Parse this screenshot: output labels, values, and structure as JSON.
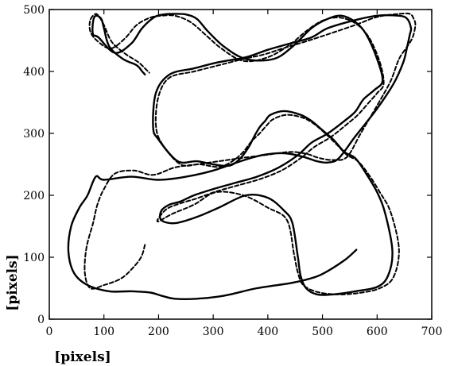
{
  "chart_data": {
    "type": "line",
    "title": "",
    "xlabel": "[pixels]",
    "ylabel": "[pixels]",
    "xlim": [
      0,
      700
    ],
    "ylim": [
      0,
      500
    ],
    "x_ticks": [
      0,
      100,
      200,
      300,
      400,
      500,
      600,
      700
    ],
    "y_ticks": [
      0,
      100,
      200,
      300,
      400,
      500
    ],
    "x_tick_labels": [
      "0",
      "100",
      "200",
      "300",
      "400",
      "500",
      "600",
      "700"
    ],
    "y_tick_labels": [
      "0",
      "100",
      "200",
      "300",
      "400",
      "500"
    ],
    "grid": false,
    "legend": "none",
    "series": [
      {
        "style": "solid",
        "color": "#000000",
        "x": [
          562,
          540,
          500,
          475,
          440,
          380,
          320,
          270,
          230,
          205,
          185,
          150,
          110,
          70,
          45,
          35,
          40,
          55,
          70,
          85,
          100,
          150,
          200,
          250,
          300,
          350,
          390,
          430,
          465,
          490,
          510,
          530,
          560,
          600,
          630,
          648,
          655,
          660,
          662,
          655,
          640,
          600,
          560,
          510,
          480,
          440,
          400,
          360,
          310,
          265,
          220,
          195,
          190,
          200,
          235,
          270,
          300,
          330,
          350,
          365,
          375,
          385,
          395,
          405,
          430,
          460,
          480,
          500,
          520,
          540,
          560,
          580,
          600,
          615,
          628,
          620,
          600,
          560,
          520,
          490,
          470,
          460,
          455,
          445,
          430,
          400,
          360,
          310,
          270,
          230,
          205,
          205,
          220,
          240,
          265,
          300,
          340,
          380,
          420,
          455,
          480,
          510,
          540,
          560,
          575,
          595,
          610,
          600,
          580,
          560,
          535,
          510,
          480,
          445,
          410,
          360,
          320,
          290,
          270,
          250,
          228,
          210,
          193,
          170,
          150,
          120,
          90,
          80,
          80,
          85,
          95,
          100,
          110,
          135,
          160,
          170,
          175
        ],
        "y": [
          112,
          95,
          73,
          65,
          58,
          50,
          38,
          33,
          33,
          38,
          43,
          45,
          45,
          55,
          75,
          110,
          150,
          180,
          200,
          230,
          225,
          230,
          225,
          230,
          240,
          255,
          265,
          268,
          262,
          255,
          253,
          260,
          295,
          340,
          380,
          415,
          440,
          460,
          470,
          485,
          490,
          490,
          483,
          470,
          455,
          445,
          435,
          423,
          415,
          405,
          395,
          365,
          310,
          290,
          255,
          255,
          250,
          248,
          260,
          278,
          295,
          310,
          320,
          330,
          336,
          330,
          320,
          305,
          290,
          270,
          260,
          235,
          205,
          170,
          110,
          70,
          52,
          45,
          40,
          40,
          50,
          70,
          100,
          155,
          175,
          196,
          200,
          180,
          165,
          155,
          160,
          175,
          185,
          190,
          200,
          210,
          220,
          230,
          245,
          265,
          285,
          300,
          320,
          335,
          355,
          370,
          385,
          420,
          460,
          480,
          490,
          485,
          470,
          440,
          420,
          420,
          440,
          465,
          485,
          492,
          493,
          492,
          488,
          470,
          445,
          430,
          455,
          460,
          480,
          490,
          485,
          470,
          440,
          420,
          410,
          400,
          395
        ]
      },
      {
        "style": "dashed",
        "color": "#000000",
        "x": [
          175,
          168,
          150,
          130,
          100,
          75,
          65,
          68,
          80,
          88,
          100,
          120,
          155,
          190,
          230,
          270,
          310,
          350,
          395,
          440,
          470,
          495,
          520,
          545,
          570,
          600,
          625,
          640,
          655,
          665,
          670,
          667,
          660,
          640,
          600,
          560,
          510,
          475,
          430,
          395,
          355,
          310,
          265,
          220,
          200,
          195,
          205,
          240,
          275,
          310,
          335,
          355,
          370,
          385,
          398,
          410,
          435,
          465,
          485,
          505,
          525,
          545,
          565,
          585,
          605,
          625,
          640,
          630,
          605,
          565,
          525,
          490,
          465,
          455,
          448,
          435,
          400,
          355,
          305,
          265,
          225,
          200,
          200,
          215,
          240,
          270,
          305,
          345,
          385,
          425,
          460,
          485,
          515,
          545,
          565,
          585,
          600,
          612,
          605,
          585,
          560,
          530,
          500,
          470,
          440,
          400,
          355,
          315,
          285,
          258,
          230,
          205,
          185,
          160,
          138,
          112,
          87,
          75,
          75,
          85,
          93,
          100,
          115,
          140,
          163,
          175,
          183
        ],
        "y": [
          120,
          100,
          80,
          65,
          55,
          50,
          75,
          115,
          155,
          185,
          210,
          235,
          240,
          233,
          245,
          250,
          255,
          260,
          265,
          270,
          267,
          260,
          257,
          262,
          300,
          345,
          385,
          420,
          440,
          455,
          475,
          485,
          493,
          493,
          488,
          475,
          460,
          450,
          438,
          428,
          420,
          410,
          400,
          390,
          360,
          315,
          285,
          250,
          250,
          246,
          255,
          270,
          287,
          300,
          313,
          323,
          330,
          325,
          315,
          300,
          283,
          265,
          255,
          233,
          205,
          172,
          113,
          68,
          50,
          42,
          40,
          44,
          55,
          75,
          105,
          160,
          180,
          200,
          205,
          185,
          170,
          158,
          163,
          178,
          187,
          195,
          206,
          216,
          226,
          240,
          260,
          278,
          294,
          315,
          330,
          350,
          365,
          380,
          415,
          455,
          478,
          487,
          482,
          465,
          443,
          423,
          417,
          437,
          460,
          480,
          490,
          490,
          487,
          475,
          453,
          437,
          450,
          465,
          483,
          493,
          486,
          475,
          447,
          428,
          415,
          405,
          398
        ]
      }
    ]
  }
}
